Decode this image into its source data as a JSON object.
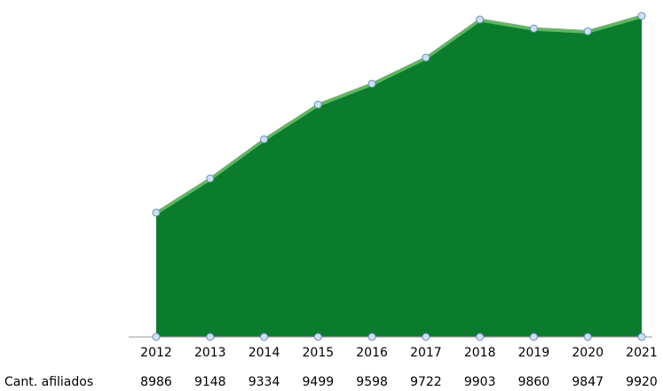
{
  "chart_data": {
    "type": "area",
    "categories": [
      "2012",
      "2013",
      "2014",
      "2015",
      "2016",
      "2017",
      "2018",
      "2019",
      "2020",
      "2021"
    ],
    "series": [
      {
        "name": "Cant. afiliados",
        "color": "#0b7c2e",
        "values": [
          8986,
          9148,
          9334,
          9499,
          9598,
          9722,
          9903,
          9860,
          9847,
          9920
        ]
      }
    ],
    "ylim": [
      8400,
      10000
    ]
  }
}
